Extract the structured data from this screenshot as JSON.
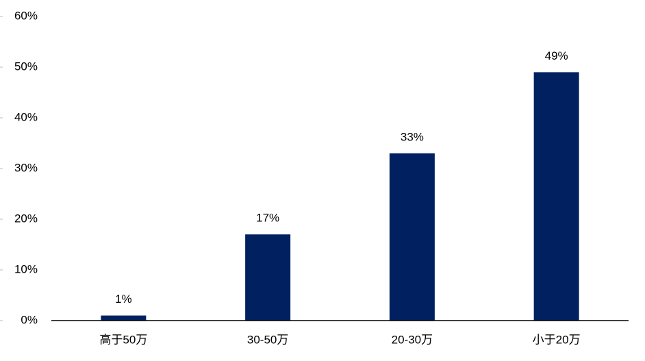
{
  "chart_data": {
    "type": "bar",
    "categories": [
      "高于50万",
      "30-50万",
      "20-30万",
      "小于20万"
    ],
    "values": [
      1,
      17,
      33,
      49
    ],
    "value_labels": [
      "1%",
      "17%",
      "33%",
      "49%"
    ],
    "color": "#002060",
    "ylim": [
      0,
      60
    ],
    "yticks": [
      {
        "value": 0,
        "label": "0%"
      },
      {
        "value": 10,
        "label": "10%"
      },
      {
        "value": 20,
        "label": "20%"
      },
      {
        "value": 30,
        "label": "30%"
      },
      {
        "value": 40,
        "label": "40%"
      },
      {
        "value": 50,
        "label": "50%"
      },
      {
        "value": 60,
        "label": "60%"
      }
    ],
    "grid": false
  }
}
